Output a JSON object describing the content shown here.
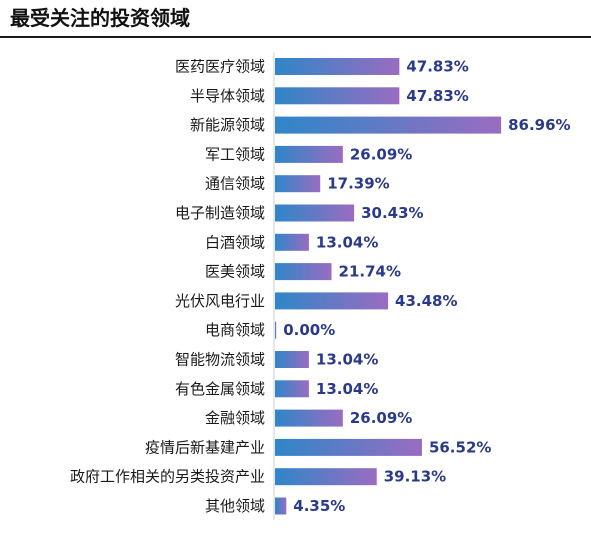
{
  "chart_data": {
    "type": "bar",
    "orientation": "horizontal",
    "title": "最受关注的投资领域",
    "categories": [
      "医药医疗领域",
      "半导体领域",
      "新能源领域",
      "军工领域",
      "通信领域",
      "电子制造领域",
      "白酒领域",
      "医美领域",
      "光伏风电行业",
      "电商领域",
      "智能物流领域",
      "有色金属领域",
      "金融领域",
      "疫情后新基建产业",
      "政府工作相关的另类投资产业",
      "其他领域"
    ],
    "values": [
      47.83,
      47.83,
      86.96,
      26.09,
      17.39,
      30.43,
      13.04,
      21.74,
      43.48,
      0.0,
      13.04,
      13.04,
      26.09,
      56.52,
      39.13,
      4.35
    ],
    "value_labels": [
      "47.83%",
      "47.83%",
      "86.96%",
      "26.09%",
      "17.39%",
      "30.43%",
      "13.04%",
      "21.74%",
      "43.48%",
      "0.00%",
      "13.04%",
      "13.04%",
      "26.09%",
      "56.52%",
      "39.13%",
      "4.35%"
    ],
    "xlim": [
      0,
      100
    ],
    "grid": false,
    "legend": "none",
    "bar_gradient": [
      "#2f86c9",
      "#9a6cc0"
    ],
    "value_label_color": "#2a3a8a"
  }
}
